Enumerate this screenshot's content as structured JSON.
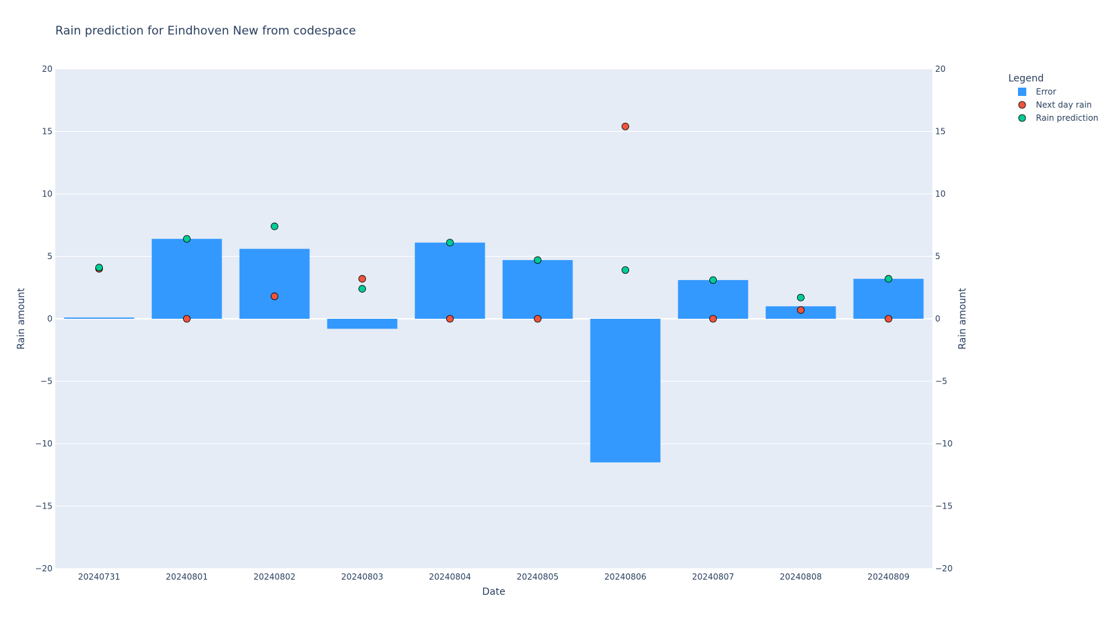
{
  "chart_data": {
    "type": "bar",
    "title": "Rain prediction for Eindhoven New from codespace",
    "xlabel": "Date",
    "ylabel": "Rain amount",
    "y2label": "Rain amount",
    "ylim": [
      -20,
      20
    ],
    "yticks": [
      -20,
      -15,
      -10,
      -5,
      0,
      5,
      10,
      15,
      20
    ],
    "ytick_labels": [
      "−20",
      "−15",
      "−10",
      "−5",
      "0",
      "5",
      "10",
      "15",
      "20"
    ],
    "grid": true,
    "legend_title": "Legend",
    "legend_position": "top-right",
    "categories": [
      "20240731",
      "20240801",
      "20240802",
      "20240803",
      "20240804",
      "20240805",
      "20240806",
      "20240807",
      "20240808",
      "20240809"
    ],
    "series": [
      {
        "name": "Error",
        "type": "bar",
        "color": "#3399ff",
        "values": [
          0.1,
          6.4,
          5.6,
          -0.8,
          6.1,
          4.7,
          -11.5,
          3.1,
          1.0,
          3.2
        ]
      },
      {
        "name": "Next day rain",
        "type": "scatter",
        "color": "#ef553b",
        "values": [
          4.0,
          0.0,
          1.8,
          3.2,
          0.0,
          0.0,
          15.4,
          0.0,
          0.7,
          0.0
        ]
      },
      {
        "name": "Rain prediction",
        "type": "scatter",
        "color": "#00cc96",
        "values": [
          4.1,
          6.4,
          7.4,
          2.4,
          6.1,
          4.7,
          3.9,
          3.1,
          1.7,
          3.2
        ]
      }
    ]
  }
}
